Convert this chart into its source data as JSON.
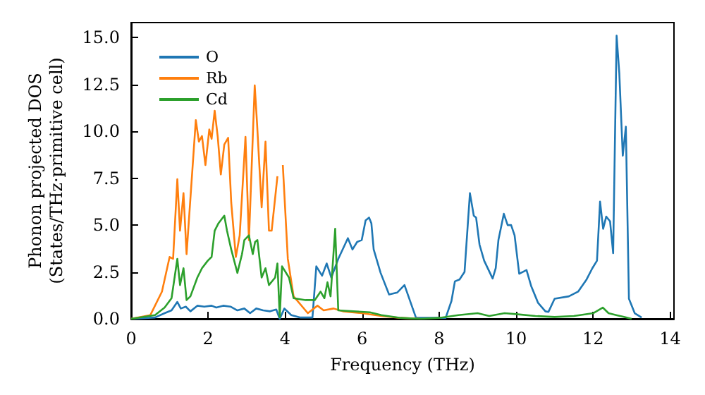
{
  "chart_data": {
    "type": "line",
    "xlabel": "Frequency (THz)",
    "ylabel": "Phonon projected DOS\n(States/THz·primitive cell)",
    "xlim": [
      0,
      14.1
    ],
    "ylim": [
      0,
      15.8
    ],
    "xticks": [
      0,
      2,
      4,
      6,
      8,
      10,
      12,
      14
    ],
    "yticks": [
      {
        "value": 0,
        "label": "0.0"
      },
      {
        "value": 2.5,
        "label": "2.5"
      },
      {
        "value": 5,
        "label": "5.0"
      },
      {
        "value": 7.5,
        "label": "7.5"
      },
      {
        "value": 10,
        "label": "10.0"
      },
      {
        "value": 12.5,
        "label": "12.5"
      },
      {
        "value": 15,
        "label": "15.0"
      }
    ],
    "grid": false,
    "legend": "top left",
    "marker": "none",
    "line_style": "solid",
    "series": [
      {
        "name": "O",
        "color": "#1f77b4",
        "x": [
          0,
          0.62,
          0.87,
          1.05,
          1.2,
          1.29,
          1.42,
          1.54,
          1.72,
          1.9,
          2.09,
          2.21,
          2.39,
          2.58,
          2.76,
          2.94,
          3.09,
          3.25,
          3.43,
          3.61,
          3.77,
          3.86,
          3.98,
          4.16,
          4.4,
          4.71,
          4.81,
          4.96,
          5.08,
          5.2,
          5.38,
          5.63,
          5.75,
          5.87,
          5.99,
          6.09,
          6.18,
          6.24,
          6.3,
          6.48,
          6.7,
          6.91,
          7.1,
          7.4,
          8.17,
          8.32,
          8.41,
          8.53,
          8.66,
          8.8,
          8.9,
          8.96,
          9.05,
          9.17,
          9.39,
          9.47,
          9.54,
          9.68,
          9.78,
          9.87,
          9.96,
          10.08,
          10.27,
          10.39,
          10.57,
          10.76,
          10.84,
          11.0,
          11.37,
          11.61,
          11.83,
          11.98,
          12.1,
          12.18,
          12.26,
          12.34,
          12.44,
          12.52,
          12.61,
          12.68,
          12.77,
          12.85,
          12.93,
          13.08,
          13.26
        ],
        "values": [
          0,
          0.07,
          0.3,
          0.45,
          0.9,
          0.55,
          0.65,
          0.4,
          0.7,
          0.65,
          0.7,
          0.6,
          0.7,
          0.65,
          0.45,
          0.55,
          0.3,
          0.55,
          0.45,
          0.4,
          0.5,
          0,
          0.55,
          0.2,
          0.07,
          0.07,
          2.8,
          2.3,
          2.95,
          2.2,
          3.2,
          4.3,
          3.7,
          4.1,
          4.2,
          5.25,
          5.4,
          5.1,
          3.7,
          2.45,
          1.3,
          1.4,
          1.8,
          0.05,
          0.05,
          0.95,
          2.0,
          2.1,
          2.5,
          6.7,
          5.5,
          5.4,
          3.95,
          3.1,
          2.15,
          2.7,
          4.2,
          5.6,
          5.0,
          5.0,
          4.45,
          2.4,
          2.6,
          1.75,
          0.85,
          0.4,
          0.37,
          1.07,
          1.2,
          1.45,
          2.1,
          2.7,
          3.1,
          6.25,
          4.8,
          5.45,
          5.2,
          3.5,
          15.1,
          13.1,
          8.7,
          10.25,
          1.07,
          0.3,
          0.07
        ]
      },
      {
        "name": "Rb",
        "color": "#ff7f0e",
        "x": [
          0,
          0.5,
          0.8,
          1.0,
          1.09,
          1.2,
          1.27,
          1.36,
          1.44,
          1.68,
          1.76,
          1.84,
          1.93,
          2.03,
          2.09,
          2.17,
          2.25,
          2.33,
          2.42,
          2.52,
          2.6,
          2.72,
          2.82,
          2.97,
          3.06,
          3.21,
          3.27,
          3.39,
          3.49,
          3.58,
          3.65,
          3.8,
          3.86,
          3.94,
          4.07,
          4.22,
          4.59,
          4.84,
          5.0,
          5.26,
          5.5,
          6.0,
          6.5,
          7.0,
          7.5
        ],
        "values": [
          0,
          0.2,
          1.45,
          3.3,
          3.2,
          7.45,
          4.7,
          6.7,
          3.45,
          10.6,
          9.45,
          9.75,
          8.2,
          10.1,
          9.6,
          11.1,
          9.7,
          7.7,
          9.3,
          9.65,
          6.2,
          3.3,
          4.45,
          9.7,
          4.2,
          12.45,
          10.45,
          5.95,
          9.45,
          4.7,
          4.7,
          7.6,
          null,
          8.2,
          3.2,
          1.2,
          0.3,
          0.7,
          0.45,
          0.55,
          0.4,
          0.3,
          0.15,
          0.05,
          0
        ]
      },
      {
        "name": "Cd",
        "color": "#2ca02c",
        "x": [
          0,
          0.62,
          0.87,
          1.05,
          1.2,
          1.27,
          1.36,
          1.44,
          1.54,
          1.72,
          1.84,
          1.99,
          2.09,
          2.17,
          2.27,
          2.42,
          2.49,
          2.6,
          2.76,
          2.88,
          2.94,
          3.06,
          3.16,
          3.22,
          3.28,
          3.39,
          3.49,
          3.58,
          3.74,
          3.8,
          3.86,
          3.92,
          4.1,
          4.22,
          4.53,
          4.77,
          4.92,
          5.02,
          5.1,
          5.18,
          5.3,
          5.38,
          6.2,
          6.5,
          7.0,
          7.5,
          8.0,
          8.5,
          9.0,
          9.3,
          9.7,
          10.0,
          10.5,
          11.0,
          11.5,
          12.0,
          12.25,
          12.4,
          12.6,
          12.8,
          13.0
        ],
        "values": [
          0,
          0.2,
          0.6,
          1.1,
          3.2,
          1.8,
          2.7,
          1.0,
          1.2,
          2.2,
          2.7,
          3.1,
          3.3,
          4.7,
          5.1,
          5.5,
          4.7,
          3.7,
          2.45,
          3.45,
          4.2,
          4.45,
          3.45,
          4.1,
          4.2,
          2.2,
          2.7,
          1.8,
          2.2,
          2.95,
          0.1,
          2.8,
          2.2,
          1.1,
          1.0,
          1.0,
          1.45,
          1.1,
          1.95,
          1.2,
          4.8,
          0.45,
          0.35,
          0.2,
          0.05,
          0,
          0.05,
          0.2,
          0.3,
          0.15,
          0.3,
          0.25,
          0.15,
          0.1,
          0.15,
          0.3,
          0.6,
          0.3,
          0.2,
          0.1,
          0
        ]
      }
    ]
  }
}
